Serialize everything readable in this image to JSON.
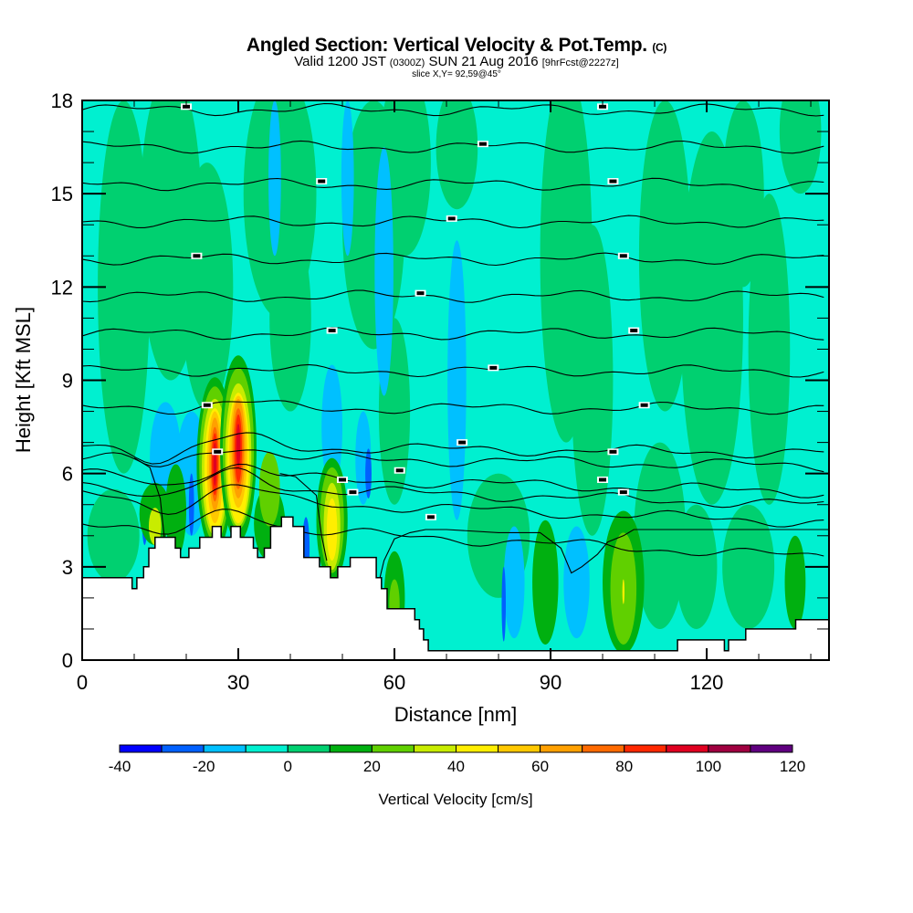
{
  "titles": {
    "main": "Angled Section: Vertical Velocity & Pot.Temp.",
    "main_suffix": "(C)",
    "valid_prefix": "Valid 1200 JST",
    "valid_z": "(0300Z)",
    "valid_date": "SUN 21 Aug 2016",
    "valid_fcst": "[9hrFcst@2227z]",
    "slice": "slice X,Y= 92,59@45°"
  },
  "chart_data": {
    "type": "heatmap",
    "title": "Angled Section: Vertical Velocity & Pot.Temp.",
    "xlabel": "Distance [nm]",
    "ylabel": "Height [Kft MSL]",
    "xlim": [
      0,
      143.5
    ],
    "ylim": [
      0,
      18
    ],
    "x_ticks": [
      "0",
      "30",
      "60",
      "90",
      "120"
    ],
    "y_ticks": [
      "0",
      "3",
      "6",
      "9",
      "12",
      "15",
      "18"
    ],
    "x_tick_values": [
      0,
      30,
      60,
      90,
      120
    ],
    "y_tick_values": [
      0,
      3,
      6,
      9,
      12,
      15,
      18
    ],
    "colorbar": {
      "label": "Vertical Velocity [cm/s]",
      "tick_labels": [
        "-40",
        "-20",
        "0",
        "20",
        "40",
        "60",
        "80",
        "100",
        "120"
      ],
      "levels": [
        -40,
        -30,
        -20,
        -10,
        0,
        10,
        20,
        30,
        40,
        50,
        60,
        70,
        80,
        90,
        100,
        110,
        120
      ],
      "colors": [
        "#0000ff",
        "#0060ff",
        "#00c0ff",
        "#00f0d0",
        "#00d070",
        "#00b010",
        "#60d000",
        "#c8ec00",
        "#ffee00",
        "#ffc800",
        "#ffa000",
        "#ff6a00",
        "#ff2800",
        "#e00020",
        "#a00040",
        "#600080"
      ]
    },
    "background_value_band": [
      0,
      10
    ],
    "updraft_maxima": [
      {
        "x_nm": 25.5,
        "height_kft": 6.3,
        "max_band": [
          90,
          100
        ]
      },
      {
        "x_nm": 30,
        "height_kft": 6.8,
        "max_band": [
          90,
          100
        ]
      },
      {
        "x_nm": 48,
        "height_kft": 4.5,
        "max_band": [
          40,
          50
        ]
      },
      {
        "x_nm": 104,
        "height_kft": 2.2,
        "max_band": [
          30,
          40
        ]
      }
    ],
    "terrain_profile": {
      "x_nm": [
        0,
        9.6,
        10.5,
        11.8,
        12.8,
        14,
        17.9,
        18.9,
        20.5,
        22.6,
        25,
        26.7,
        28.6,
        30.4,
        32.9,
        33.7,
        35,
        36.2,
        38.3,
        40.5,
        42.6,
        45.6,
        47.7,
        49.1,
        51.5,
        56.5,
        57.5,
        58.6,
        63.9,
        64.8,
        65.6,
        66.5,
        67.3,
        114.4,
        123.4,
        124.2,
        127.5,
        137.1,
        143.5
      ],
      "height_kft": [
        2.65,
        2.3,
        2.65,
        3.0,
        3.6,
        3.95,
        3.6,
        3.3,
        3.6,
        3.95,
        4.3,
        3.95,
        4.3,
        3.95,
        3.6,
        3.3,
        3.6,
        4.3,
        4.6,
        4.3,
        3.3,
        3.0,
        2.65,
        3.0,
        3.3,
        2.65,
        2.3,
        1.65,
        1.3,
        1.0,
        0.65,
        0.3,
        0.3,
        0.65,
        0.3,
        0.65,
        1.0,
        1.3,
        1.3
      ]
    },
    "theta_contour_labels_legible": false
  }
}
